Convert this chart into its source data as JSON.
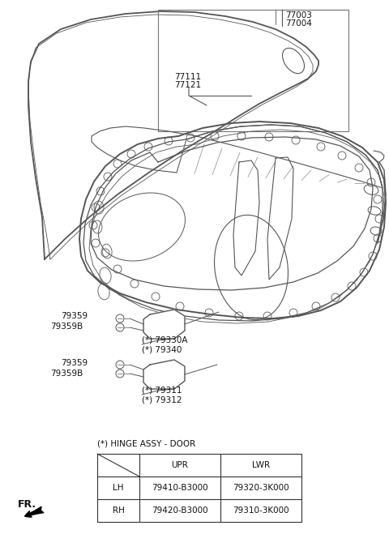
{
  "bg_color": "#ffffff",
  "hinge_label": "(*) HINGE ASSY - DOOR",
  "table_header": [
    "",
    "UPR",
    "LWR"
  ],
  "table_rows": [
    [
      "LH",
      "79410-B3000",
      "79320-3K000"
    ],
    [
      "RH",
      "79420-B3000",
      "79310-3K000"
    ]
  ],
  "line_color": "#555555",
  "text_color": "#111111",
  "table_border_color": "#333333",
  "label_77003": "77003",
  "label_77004": "77004",
  "label_77111": "77111",
  "label_77121": "77121",
  "label_79359_1": "79359",
  "label_79359B_1": "79359B",
  "label_79330A": "(*) 79330A",
  "label_79340": "(*) 79340",
  "label_79359_2": "79359",
  "label_79359B_2": "79359B",
  "label_79311": "(*) 79311",
  "label_79312": "(*) 79312",
  "fr_label": "FR."
}
